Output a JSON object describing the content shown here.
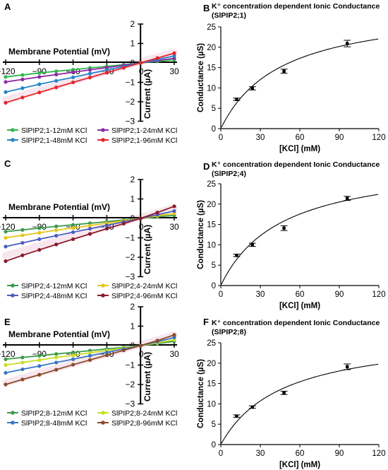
{
  "chart_data": [
    {
      "panel": "A",
      "type": "line",
      "xlabel": "Membrane Potential (mV)",
      "ylabel": "Current (µA)",
      "xlim": [
        -120,
        30
      ],
      "ylim": [
        -3,
        2
      ],
      "xticks": [
        -120,
        -90,
        -60,
        -30,
        0,
        30
      ],
      "yticks": [
        -3,
        -2,
        -1,
        0,
        1,
        2
      ],
      "x": [
        -120,
        -105,
        -90,
        -75,
        -60,
        -45,
        -30,
        -15,
        0,
        15,
        30
      ],
      "series": [
        {
          "name": "SlPIP2;1-12mM KCl",
          "color": "#2eb84e",
          "values": [
            -0.72,
            -0.62,
            -0.52,
            -0.43,
            -0.35,
            -0.26,
            -0.18,
            -0.09,
            0.0,
            0.08,
            0.16
          ]
        },
        {
          "name": "SlPIP2;1-24mM KCl",
          "color": "#8e2aa6",
          "values": [
            -0.98,
            -0.85,
            -0.72,
            -0.6,
            -0.48,
            -0.36,
            -0.24,
            -0.12,
            0.0,
            0.12,
            0.24
          ]
        },
        {
          "name": "SlPIP2;1-48mM KCl",
          "color": "#2487c7",
          "values": [
            -1.5,
            -1.3,
            -1.1,
            -0.92,
            -0.74,
            -0.55,
            -0.37,
            -0.18,
            0.0,
            0.18,
            0.36
          ]
        },
        {
          "name": "SlPIP2;1-96mM KCl",
          "color": "#e8242a",
          "values": [
            -2.05,
            -1.78,
            -1.52,
            -1.26,
            -1.0,
            -0.75,
            -0.5,
            -0.25,
            0.0,
            0.25,
            0.5
          ]
        }
      ]
    },
    {
      "panel": "B",
      "type": "scatter",
      "title": "K⁺ concentration dependent Ionic Conductance",
      "subtitle": "(SlPIP2;1)",
      "xlabel": "[KCl] (mM)",
      "ylabel": "Conductance (µS)",
      "xlim": [
        0,
        120
      ],
      "ylim": [
        0,
        25
      ],
      "xticks": [
        0,
        30,
        60,
        90,
        120
      ],
      "yticks": [
        0,
        5,
        10,
        15,
        20,
        25
      ],
      "points": [
        {
          "x": 12,
          "y": 7.2,
          "err": 0.3
        },
        {
          "x": 24,
          "y": 9.9,
          "err": 0.4
        },
        {
          "x": 48,
          "y": 14.1,
          "err": 0.5
        },
        {
          "x": 96,
          "y": 20.9,
          "err": 0.8
        }
      ],
      "fit": {
        "model": "hyperbolic",
        "vmax": 30.5,
        "km": 46.0
      }
    },
    {
      "panel": "C",
      "type": "line",
      "xlabel": "Membrane Potential (mV)",
      "ylabel": "Current (µA)",
      "xlim": [
        -120,
        30
      ],
      "ylim": [
        -3,
        2
      ],
      "xticks": [
        -120,
        -90,
        -60,
        -30,
        0,
        30
      ],
      "yticks": [
        -3,
        -2,
        -1,
        0,
        1,
        2
      ],
      "x": [
        -120,
        -105,
        -90,
        -75,
        -60,
        -45,
        -30,
        -15,
        0,
        15,
        30
      ],
      "series": [
        {
          "name": "SlPIP2;4-12mM KCl",
          "color": "#3a9a4c",
          "values": [
            -0.68,
            -0.59,
            -0.5,
            -0.41,
            -0.33,
            -0.25,
            -0.17,
            -0.08,
            0.0,
            0.08,
            0.16
          ]
        },
        {
          "name": "SlPIP2;4-24mM KCl",
          "color": "#e6c619",
          "values": [
            -1.0,
            -0.87,
            -0.74,
            -0.61,
            -0.49,
            -0.37,
            -0.25,
            -0.12,
            0.0,
            0.13,
            0.26
          ]
        },
        {
          "name": "SlPIP2;4-48mM KCl",
          "color": "#4a5fc0",
          "values": [
            -1.45,
            -1.26,
            -1.07,
            -0.89,
            -0.71,
            -0.53,
            -0.36,
            -0.18,
            0.0,
            0.19,
            0.38
          ]
        },
        {
          "name": "SlPIP2;4-96mM KCl",
          "color": "#8a1a2c",
          "values": [
            -2.2,
            -1.9,
            -1.62,
            -1.34,
            -1.07,
            -0.8,
            -0.53,
            -0.27,
            0.0,
            0.3,
            0.62
          ]
        }
      ]
    },
    {
      "panel": "D",
      "type": "scatter",
      "title": "K⁺ concentration dependent Ionic Conductance",
      "subtitle": "(SlPIP2;4)",
      "xlabel": "[KCl] (mM)",
      "ylabel": "Conductance (µS)",
      "xlim": [
        0,
        120
      ],
      "ylim": [
        0,
        25
      ],
      "xticks": [
        0,
        30,
        60,
        90,
        120
      ],
      "yticks": [
        0,
        5,
        10,
        15,
        20,
        25
      ],
      "points": [
        {
          "x": 12,
          "y": 7.4,
          "err": 0.3
        },
        {
          "x": 24,
          "y": 10.0,
          "err": 0.4
        },
        {
          "x": 48,
          "y": 14.1,
          "err": 0.6
        },
        {
          "x": 96,
          "y": 21.4,
          "err": 0.5
        }
      ],
      "fit": {
        "model": "hyperbolic",
        "vmax": 31.0,
        "km": 46.0
      }
    },
    {
      "panel": "E",
      "type": "line",
      "xlabel": "Membrane Potential (mV)",
      "ylabel": "Current (µA)",
      "xlim": [
        -120,
        30
      ],
      "ylim": [
        -3,
        2
      ],
      "xticks": [
        -120,
        -90,
        -60,
        -30,
        0,
        30
      ],
      "yticks": [
        -3,
        -2,
        -1,
        0,
        1,
        2
      ],
      "x": [
        -120,
        -105,
        -90,
        -75,
        -60,
        -45,
        -30,
        -15,
        0,
        15,
        30
      ],
      "series": [
        {
          "name": "SlPIP2;8-12mM KCl",
          "color": "#3d9c48",
          "values": [
            -0.7,
            -0.61,
            -0.52,
            -0.43,
            -0.35,
            -0.26,
            -0.17,
            -0.09,
            0.0,
            0.1,
            0.22
          ]
        },
        {
          "name": "SlPIP2;8-24mM KCl",
          "color": "#c8de26",
          "values": [
            -1.0,
            -0.87,
            -0.74,
            -0.61,
            -0.5,
            -0.37,
            -0.25,
            -0.12,
            0.0,
            0.14,
            0.3
          ]
        },
        {
          "name": "SlPIP2;8-48mM KCl",
          "color": "#3876c4",
          "values": [
            -1.4,
            -1.22,
            -1.05,
            -0.87,
            -0.7,
            -0.52,
            -0.35,
            -0.17,
            0.0,
            0.2,
            0.42
          ]
        },
        {
          "name": "SlPIP2;8-96mM KCl",
          "color": "#8b4a2a",
          "values": [
            -2.0,
            -1.74,
            -1.5,
            -1.24,
            -0.98,
            -0.74,
            -0.49,
            -0.24,
            0.0,
            0.26,
            0.55
          ]
        }
      ]
    },
    {
      "panel": "F",
      "type": "scatter",
      "title": "K⁺ concentration dependent Ionic Conductance",
      "subtitle": "(SlPIP2;8)",
      "xlabel": "[KCl] (mM)",
      "ylabel": "Conductance (µS)",
      "xlim": [
        0,
        120
      ],
      "ylim": [
        0,
        25
      ],
      "xticks": [
        0,
        30,
        60,
        90,
        120
      ],
      "yticks": [
        0,
        5,
        10,
        15,
        20,
        25
      ],
      "points": [
        {
          "x": 12,
          "y": 7.0,
          "err": 0.3
        },
        {
          "x": 24,
          "y": 9.2,
          "err": 0.3
        },
        {
          "x": 48,
          "y": 12.7,
          "err": 0.4
        },
        {
          "x": 96,
          "y": 19.1,
          "err": 0.7
        }
      ],
      "fit": {
        "model": "hyperbolic",
        "vmax": 27.5,
        "km": 47.0
      }
    }
  ]
}
